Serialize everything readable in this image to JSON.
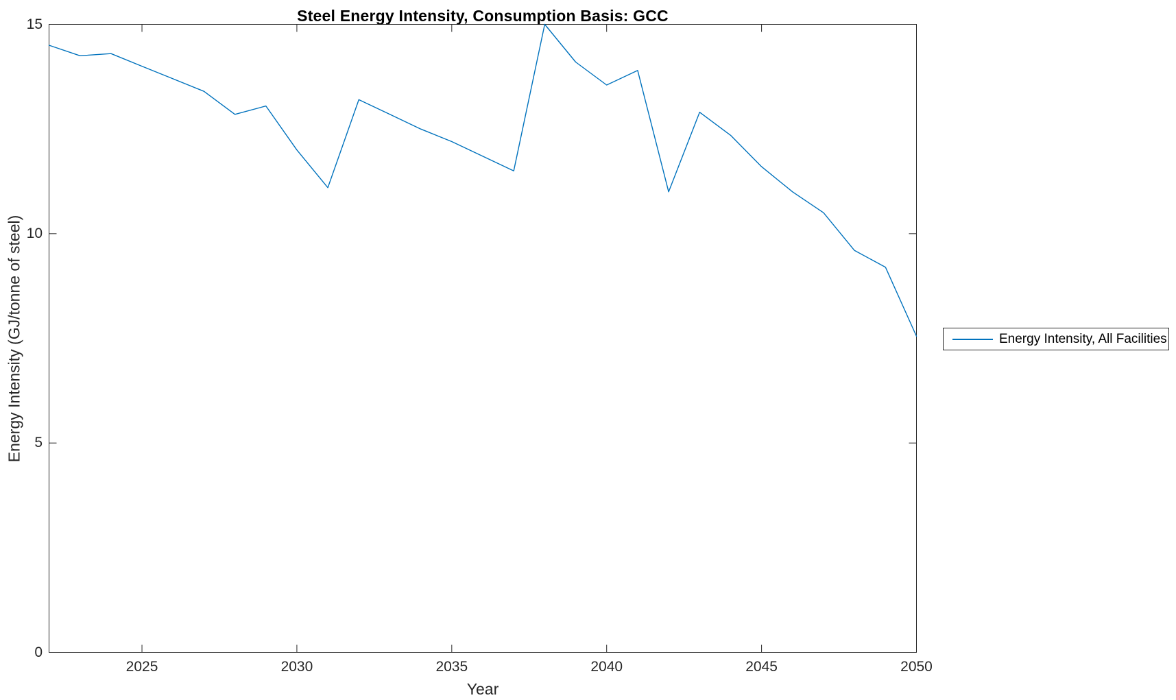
{
  "figure": {
    "background_color": "#ffffff"
  },
  "chart": {
    "title": "Steel Energy Intensity, Consumption Basis: GCC",
    "xlabel": "Year",
    "ylabel": "Energy Intensity (GJ/tonne of steel)",
    "legend": {
      "label": "Energy Intensity, All Facilities",
      "position": "right-outside"
    }
  },
  "colors": {
    "line": "#0072BD",
    "axis": "#262626",
    "title_text": "#000000",
    "background": "#ffffff"
  },
  "chart_data": {
    "type": "line",
    "title": "Steel Energy Intensity, Consumption Basis: GCC",
    "xlabel": "Year",
    "ylabel": "Energy Intensity (GJ/tonne of steel)",
    "xlim": [
      2022,
      2050
    ],
    "ylim": [
      0,
      15
    ],
    "x_ticks": [
      2025,
      2030,
      2035,
      2040,
      2045,
      2050
    ],
    "y_ticks": [
      0,
      5,
      10,
      15
    ],
    "grid": false,
    "box": true,
    "legend_position": "right-outside",
    "series": [
      {
        "name": "Energy Intensity, All Facilities",
        "color": "#0072BD",
        "x": [
          2022,
          2023,
          2024,
          2025,
          2026,
          2027,
          2028,
          2029,
          2030,
          2031,
          2032,
          2033,
          2034,
          2035,
          2036,
          2037,
          2038,
          2039,
          2040,
          2041,
          2042,
          2043,
          2044,
          2045,
          2046,
          2047,
          2048,
          2049,
          2050
        ],
        "values": [
          14.5,
          14.25,
          14.3,
          14.0,
          13.7,
          13.4,
          12.85,
          13.05,
          12.0,
          11.1,
          13.2,
          12.85,
          12.5,
          12.2,
          11.85,
          11.5,
          15.0,
          14.1,
          13.55,
          13.9,
          11.0,
          12.9,
          12.35,
          11.6,
          11.0,
          10.5,
          9.6,
          9.2,
          7.55
        ]
      }
    ]
  }
}
